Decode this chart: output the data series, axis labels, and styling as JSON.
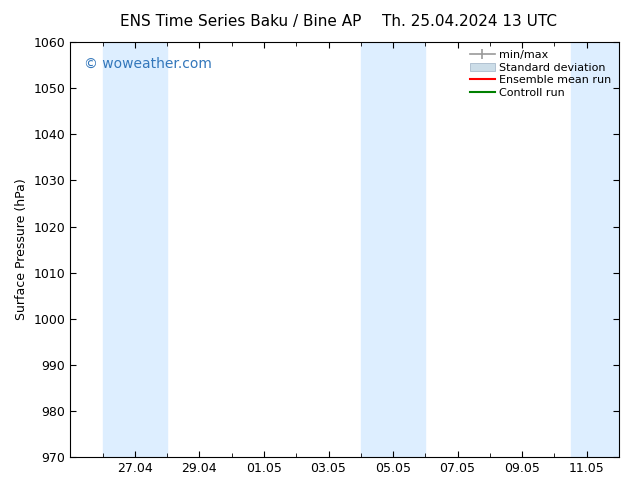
{
  "title_left": "ENS Time Series Baku / Bine AP",
  "title_right": "Th. 25.04.2024 13 UTC",
  "ylabel": "Surface Pressure (hPa)",
  "ylim": [
    970,
    1060
  ],
  "yticks": [
    970,
    980,
    990,
    1000,
    1010,
    1020,
    1030,
    1040,
    1050,
    1060
  ],
  "xtick_labels": [
    "27.04",
    "29.04",
    "01.05",
    "03.05",
    "05.05",
    "07.05",
    "09.05",
    "11.05"
  ],
  "xtick_positions": [
    2,
    4,
    6,
    8,
    10,
    12,
    14,
    16
  ],
  "xlim": [
    0,
    17
  ],
  "shaded_bands": [
    {
      "x_start": 1.0,
      "x_end": 3.0
    },
    {
      "x_start": 9.0,
      "x_end": 11.0
    },
    {
      "x_start": 15.5,
      "x_end": 17.0
    }
  ],
  "shaded_color": "#ddeeff",
  "background_color": "#ffffff",
  "watermark_text": "© woweather.com",
  "watermark_color": "#3377bb",
  "legend_entries": [
    {
      "label": "min/max",
      "color": "#999999",
      "style": "errorbar"
    },
    {
      "label": "Standard deviation",
      "color": "#ccdde8",
      "style": "rect"
    },
    {
      "label": "Ensemble mean run",
      "color": "#ff0000",
      "style": "line"
    },
    {
      "label": "Controll run",
      "color": "#008000",
      "style": "line"
    }
  ],
  "title_fontsize": 11,
  "tick_fontsize": 9,
  "ylabel_fontsize": 9,
  "watermark_fontsize": 10,
  "legend_fontsize": 8
}
